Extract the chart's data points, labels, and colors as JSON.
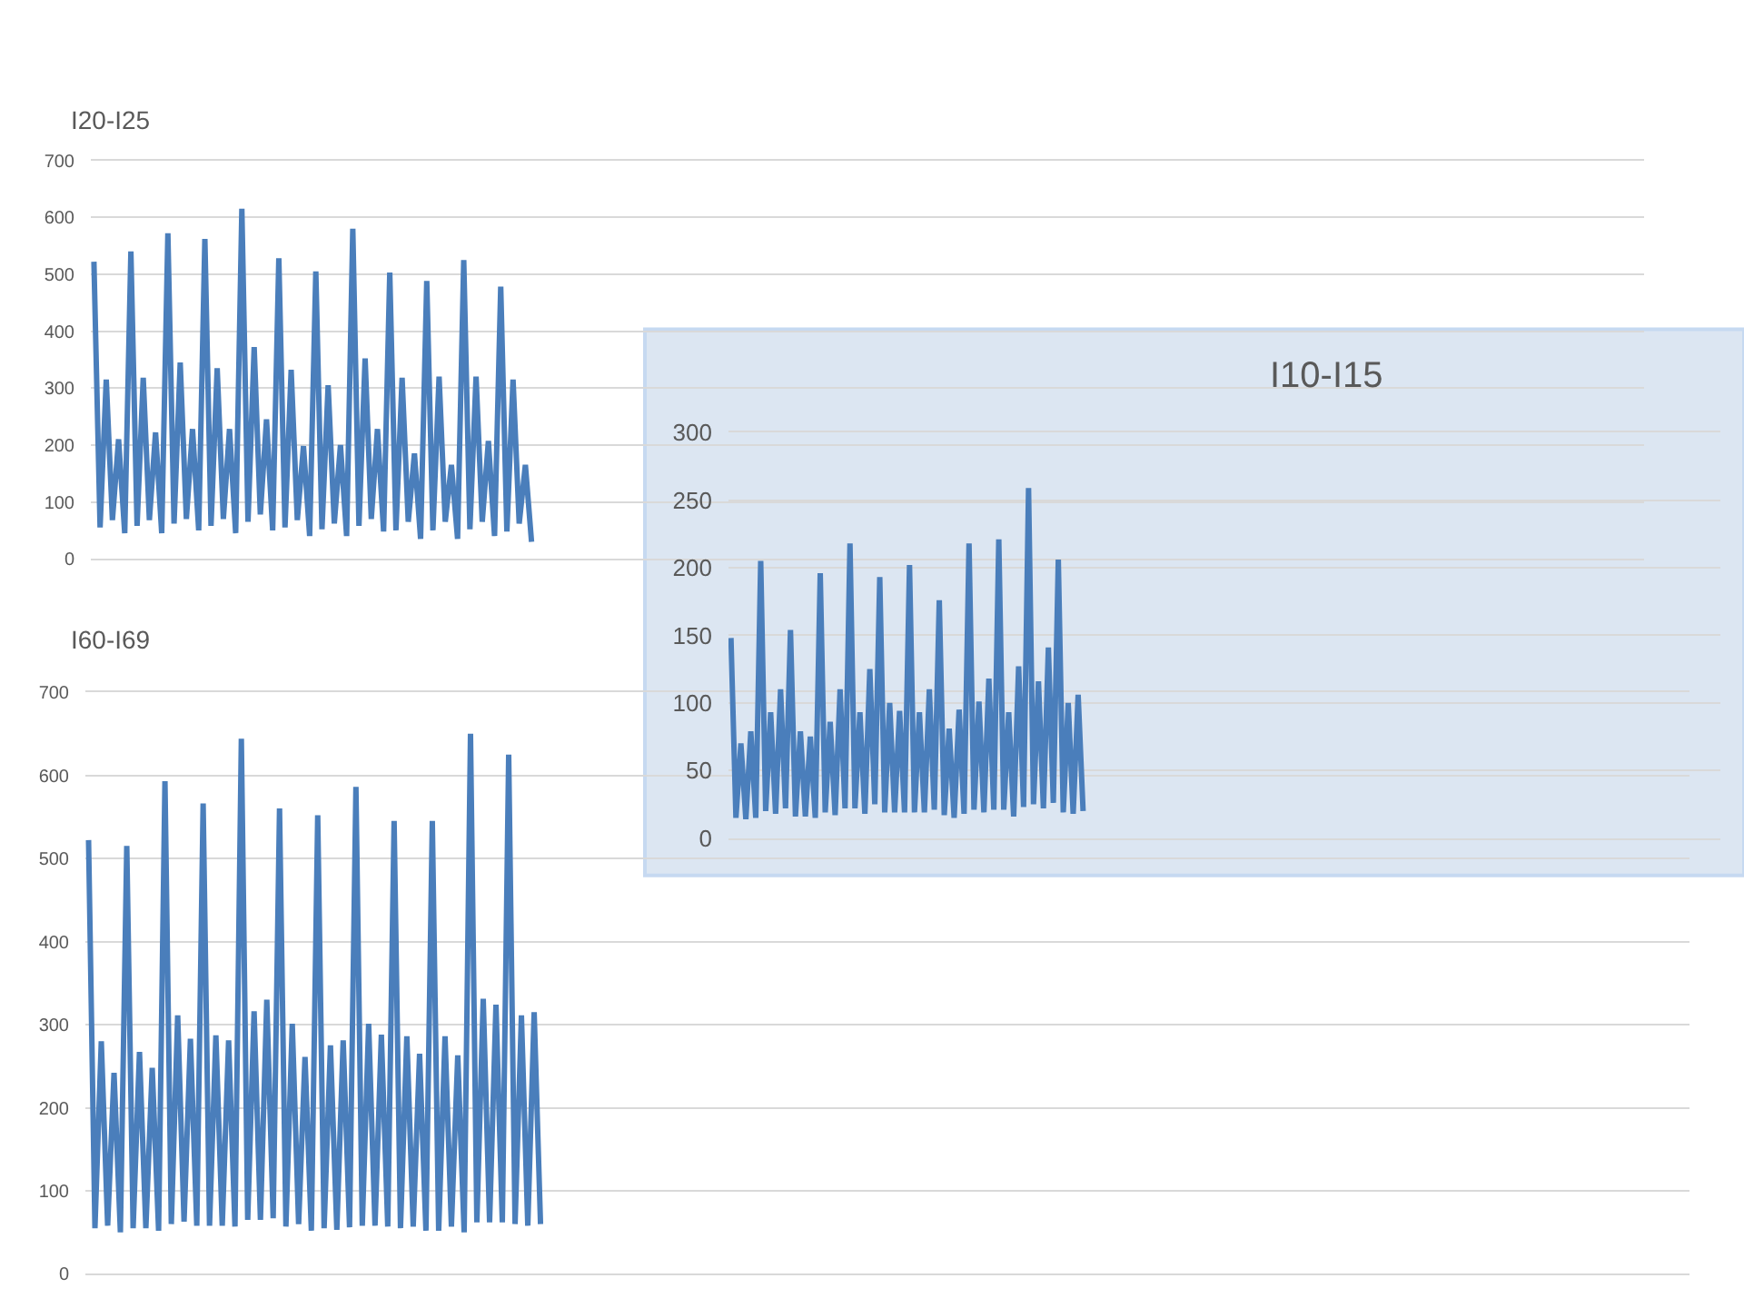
{
  "chart_data": [
    {
      "type": "line",
      "title": "I20-I25",
      "color": "#4a7ebb",
      "grid": "y",
      "tick_labels": "y",
      "ylim": [
        0,
        700
      ],
      "yticks": [
        0,
        100,
        200,
        300,
        400,
        500,
        600,
        700
      ],
      "values": [
        522,
        55,
        315,
        68,
        210,
        45,
        540,
        58,
        318,
        68,
        222,
        45,
        572,
        62,
        345,
        70,
        228,
        50,
        562,
        58,
        335,
        70,
        228,
        45,
        615,
        65,
        372,
        78,
        245,
        50,
        528,
        55,
        332,
        68,
        198,
        40,
        505,
        52,
        305,
        62,
        200,
        40,
        580,
        58,
        352,
        70,
        228,
        48,
        503,
        50,
        318,
        65,
        185,
        35,
        488,
        50,
        320,
        65,
        165,
        35,
        525,
        52,
        320,
        65,
        207,
        40,
        478,
        48,
        315,
        62,
        165,
        30,
        null,
        null,
        null,
        null,
        null,
        null,
        null,
        null,
        null,
        null,
        null,
        null,
        null,
        null,
        null,
        null,
        null,
        null,
        null,
        null,
        null,
        null,
        null,
        null,
        null,
        null,
        null,
        null,
        null,
        null,
        null,
        null,
        null,
        null,
        null,
        null,
        null,
        null,
        null,
        null,
        null,
        null,
        null,
        null,
        null,
        null,
        null,
        null,
        null,
        null,
        null,
        null,
        null,
        null,
        null,
        null,
        null,
        null,
        null,
        null,
        null,
        null,
        null,
        null,
        null,
        null,
        null,
        null,
        null,
        null,
        null,
        null,
        null,
        null,
        null,
        null,
        null,
        null,
        null,
        null,
        null,
        null,
        null,
        null,
        null,
        null,
        null,
        null,
        null,
        null,
        null,
        null,
        null,
        null,
        null,
        null,
        null,
        null,
        null,
        null,
        null,
        null,
        null,
        null,
        null,
        null,
        null,
        null,
        null,
        null,
        null,
        null,
        null,
        null,
        null,
        null,
        null,
        null,
        null,
        null,
        null,
        null,
        null,
        null,
        null,
        null,
        null,
        null,
        null,
        null,
        null,
        null,
        null,
        null,
        null,
        null,
        null,
        null,
        null,
        null,
        null,
        null,
        null,
        null,
        null,
        null,
        null,
        null,
        null,
        null,
        null,
        null,
        null,
        null,
        null,
        null,
        null,
        null,
        null,
        null,
        null,
        null,
        null,
        null,
        null,
        null,
        null,
        null,
        null,
        null,
        null,
        null,
        null,
        null,
        null,
        null,
        null,
        null,
        null,
        null
      ],
      "categories": [
        null,
        null,
        null,
        null,
        null,
        null,
        null,
        null,
        null,
        null,
        null,
        null,
        null,
        null,
        null,
        null,
        null,
        null,
        null,
        null,
        null,
        null,
        null,
        null,
        null,
        null,
        null,
        null,
        null,
        null,
        null,
        null,
        null,
        null,
        null,
        null,
        null,
        null,
        null,
        null,
        null,
        null,
        null,
        null,
        null,
        null,
        null,
        null,
        null,
        null,
        null,
        null,
        null,
        null,
        null,
        null,
        null,
        null,
        null,
        null,
        null,
        null,
        null,
        null,
        null,
        null,
        null,
        null,
        null,
        null,
        null,
        null,
        null,
        null,
        null,
        null,
        null,
        null,
        null,
        null,
        null,
        null,
        null,
        null,
        null,
        null,
        null,
        null,
        null,
        null,
        null,
        null,
        null,
        null,
        null,
        null,
        null,
        null,
        null,
        null,
        null,
        null,
        null,
        null,
        null,
        null,
        null,
        null,
        null,
        null,
        null,
        null,
        null,
        null,
        null,
        null,
        null,
        null,
        null,
        null,
        null,
        null,
        null,
        null,
        null,
        null,
        null,
        null,
        null,
        null,
        null,
        null,
        null,
        null,
        null,
        null,
        null,
        null,
        null,
        null,
        null,
        null,
        null,
        null,
        null,
        null,
        null,
        null,
        null,
        null,
        null,
        null,
        null,
        null,
        null,
        null,
        null,
        null,
        null,
        null,
        null,
        null,
        null,
        null,
        null,
        null,
        null,
        null,
        null,
        null,
        null,
        null,
        null,
        null,
        null,
        null,
        null,
        null,
        null,
        null,
        null,
        null,
        null,
        null,
        null,
        null,
        null,
        null,
        null,
        null,
        null,
        null,
        null,
        null,
        null,
        null,
        null,
        null,
        null,
        null,
        null,
        null,
        null,
        null,
        null,
        null,
        null,
        null,
        null,
        null,
        null,
        null,
        null,
        null,
        null,
        null,
        null,
        null,
        null,
        null,
        null,
        null,
        null,
        null,
        null,
        null,
        null,
        null,
        null,
        null,
        null,
        null,
        null,
        null,
        null,
        null,
        null,
        null,
        null,
        null,
        null,
        null,
        null,
        null,
        null,
        null,
        null,
        null,
        null,
        null,
        null,
        null
      ]
    },
    {
      "type": "line",
      "title": "I60-I69",
      "color": "#4a7ebb",
      "grid": "y",
      "tick_labels": "y",
      "ylim": [
        0,
        700
      ],
      "yticks": [
        0,
        100,
        200,
        300,
        400,
        500,
        600,
        700
      ],
      "values": [
        522,
        55,
        280,
        58,
        242,
        50,
        515,
        55,
        267,
        55,
        248,
        52,
        593,
        60,
        311,
        63,
        283,
        58,
        566,
        58,
        287,
        58,
        281,
        57,
        644,
        65,
        316,
        65,
        330,
        67,
        560,
        57,
        301,
        60,
        261,
        52,
        552,
        55,
        275,
        53,
        281,
        56,
        586,
        58,
        301,
        58,
        288,
        57,
        545,
        55,
        286,
        57,
        265,
        52,
        545,
        52,
        286,
        57,
        263,
        50,
        650,
        62,
        331,
        62,
        324,
        62,
        625,
        60,
        311,
        58,
        315,
        60,
        null,
        null,
        null,
        null,
        null,
        null,
        null,
        null,
        null,
        null,
        null,
        null,
        null,
        null,
        null,
        null,
        null,
        null,
        null,
        null,
        null,
        null,
        null,
        null,
        null,
        null,
        null,
        null,
        null,
        null,
        null,
        null,
        null,
        null,
        null,
        null,
        null,
        null,
        null,
        null,
        null,
        null,
        null,
        null,
        null,
        null,
        null,
        null,
        null,
        null,
        null,
        null,
        null,
        null,
        null,
        null,
        null,
        null,
        null,
        null,
        null,
        null,
        null,
        null,
        null,
        null,
        null,
        null,
        null,
        null,
        null,
        null,
        null,
        null,
        null,
        null,
        null,
        null,
        null,
        null,
        null,
        null,
        null,
        null,
        null,
        null,
        null,
        null,
        null,
        null,
        null,
        null,
        null,
        null,
        null,
        null,
        null,
        null,
        null,
        null,
        null,
        null,
        null,
        null,
        null,
        null,
        null,
        null,
        null,
        null,
        null,
        null,
        null,
        null,
        null,
        null,
        null,
        null,
        null,
        null,
        null,
        null,
        null,
        null,
        null,
        null,
        null,
        null,
        null,
        null,
        null,
        null,
        null,
        null,
        null,
        null,
        null,
        null,
        null,
        null,
        null,
        null,
        null,
        null,
        null,
        null,
        null,
        null,
        null,
        null,
        null,
        null,
        null,
        null,
        null,
        null,
        null,
        null,
        null,
        null,
        null,
        null,
        null,
        null,
        null,
        null,
        null,
        null,
        null,
        null,
        null,
        null,
        null,
        null,
        null,
        null,
        null,
        null,
        null,
        null
      ],
      "categories": [
        null,
        null,
        null,
        null,
        null,
        null,
        null,
        null,
        null,
        null,
        null,
        null,
        null,
        null,
        null,
        null,
        null,
        null,
        null,
        null,
        null,
        null,
        null,
        null,
        null,
        null,
        null,
        null,
        null,
        null,
        null,
        null,
        null,
        null,
        null,
        null,
        null,
        null,
        null,
        null,
        null,
        null,
        null,
        null,
        null,
        null,
        null,
        null,
        null,
        null,
        null,
        null,
        null,
        null,
        null,
        null,
        null,
        null,
        null,
        null,
        null,
        null,
        null,
        null,
        null,
        null,
        null,
        null,
        null,
        null,
        null,
        null,
        null,
        null,
        null,
        null,
        null,
        null,
        null,
        null,
        null,
        null,
        null,
        null,
        null,
        null,
        null,
        null,
        null,
        null,
        null,
        null,
        null,
        null,
        null,
        null,
        null,
        null,
        null,
        null,
        null,
        null,
        null,
        null,
        null,
        null,
        null,
        null,
        null,
        null,
        null,
        null,
        null,
        null,
        null,
        null,
        null,
        null,
        null,
        null,
        null,
        null,
        null,
        null,
        null,
        null,
        null,
        null,
        null,
        null,
        null,
        null,
        null,
        null,
        null,
        null,
        null,
        null,
        null,
        null,
        null,
        null,
        null,
        null,
        null,
        null,
        null,
        null,
        null,
        null,
        null,
        null,
        null,
        null,
        null,
        null,
        null,
        null,
        null,
        null,
        null,
        null,
        null,
        null,
        null,
        null,
        null,
        null,
        null,
        null,
        null,
        null,
        null,
        null,
        null,
        null,
        null,
        null,
        null,
        null,
        null,
        null,
        null,
        null,
        null,
        null,
        null,
        null,
        null,
        null,
        null,
        null,
        null,
        null,
        null,
        null,
        null,
        null,
        null,
        null,
        null,
        null,
        null,
        null,
        null,
        null,
        null,
        null,
        null,
        null,
        null,
        null,
        null,
        null,
        null,
        null,
        null,
        null,
        null,
        null,
        null,
        null,
        null,
        null,
        null,
        null,
        null,
        null,
        null,
        null,
        null,
        null,
        null,
        null,
        null,
        null,
        null,
        null,
        null,
        null,
        null,
        null,
        null,
        null,
        null,
        null,
        null,
        null,
        null,
        null,
        null,
        null
      ]
    },
    {
      "type": "line",
      "title": "I10-I15",
      "color": "#4a7ebb",
      "grid": "y",
      "tick_labels": "y",
      "ylim": [
        0,
        300
      ],
      "yticks": [
        0,
        50,
        100,
        150,
        200,
        250,
        300
      ],
      "values": [
        148,
        15,
        70,
        14,
        79,
        15,
        205,
        20,
        93,
        18,
        110,
        22,
        154,
        16,
        79,
        16,
        75,
        15,
        196,
        19,
        86,
        17,
        110,
        22,
        218,
        22,
        93,
        18,
        125,
        25,
        193,
        19,
        100,
        19,
        94,
        19,
        202,
        19,
        93,
        19,
        110,
        21,
        176,
        17,
        81,
        15,
        95,
        18,
        218,
        21,
        101,
        19,
        118,
        21,
        221,
        21,
        93,
        16,
        127,
        23,
        259,
        25,
        116,
        22,
        141,
        26,
        206,
        19,
        100,
        18,
        106,
        20,
        null,
        null,
        null,
        null,
        null,
        null,
        null,
        null,
        null,
        null,
        null,
        null,
        null,
        null,
        null,
        null,
        null,
        null,
        null,
        null,
        null,
        null,
        null,
        null,
        null,
        null,
        null,
        null,
        null,
        null,
        null,
        null,
        null,
        null,
        null,
        null,
        null,
        null,
        null,
        null,
        null,
        null,
        null,
        null,
        null,
        null,
        null,
        null,
        null,
        null,
        null,
        null,
        null,
        null,
        null,
        null,
        null,
        null,
        null,
        null,
        null,
        null,
        null,
        null,
        null,
        null,
        null,
        null,
        null,
        null,
        null,
        null,
        null,
        null,
        null,
        null,
        null,
        null,
        null,
        null,
        null,
        null,
        null,
        null,
        null,
        null,
        null,
        null,
        null,
        null,
        null,
        null,
        null,
        null,
        null,
        null,
        null,
        null,
        null,
        null,
        null,
        null,
        null,
        null,
        null,
        null,
        null,
        null,
        null,
        null,
        null,
        null,
        null,
        null,
        null,
        null,
        null,
        null,
        null,
        null,
        null,
        null,
        null,
        null,
        null,
        null,
        null,
        null
      ],
      "categories": [
        null,
        null,
        null,
        null,
        null,
        null,
        null,
        null,
        null,
        null,
        null,
        null,
        null,
        null,
        null,
        null,
        null,
        null,
        null,
        null,
        null,
        null,
        null,
        null,
        null,
        null,
        null,
        null,
        null,
        null,
        null,
        null,
        null,
        null,
        null,
        null,
        null,
        null,
        null,
        null,
        null,
        null,
        null,
        null,
        null,
        null,
        null,
        null,
        null,
        null,
        null,
        null,
        null,
        null,
        null,
        null,
        null,
        null,
        null,
        null,
        null,
        null,
        null,
        null,
        null,
        null,
        null,
        null,
        null,
        null,
        null,
        null,
        null,
        null,
        null,
        null,
        null,
        null,
        null,
        null,
        null,
        null,
        null,
        null,
        null,
        null,
        null,
        null,
        null,
        null,
        null,
        null,
        null,
        null,
        null,
        null,
        null,
        null,
        null,
        null,
        null,
        null,
        null,
        null,
        null,
        null,
        null,
        null,
        null,
        null,
        null,
        null,
        null,
        null,
        null,
        null,
        null,
        null,
        null,
        null,
        null,
        null,
        null,
        null,
        null,
        null,
        null,
        null,
        null,
        null,
        null,
        null,
        null,
        null,
        null,
        null,
        null,
        null,
        null,
        null,
        null,
        null,
        null,
        null,
        null,
        null,
        null,
        null,
        null,
        null,
        null,
        null,
        null,
        null,
        null,
        null,
        null,
        null,
        null,
        null,
        null,
        null,
        null,
        null,
        null,
        null,
        null,
        null,
        null,
        null,
        null,
        null,
        null,
        null,
        null,
        null,
        null,
        null,
        null,
        null,
        null,
        null,
        null,
        null,
        null,
        null,
        null,
        null,
        null,
        null,
        null,
        null,
        null,
        null,
        null,
        null,
        null,
        null,
        null,
        null
      ]
    }
  ]
}
